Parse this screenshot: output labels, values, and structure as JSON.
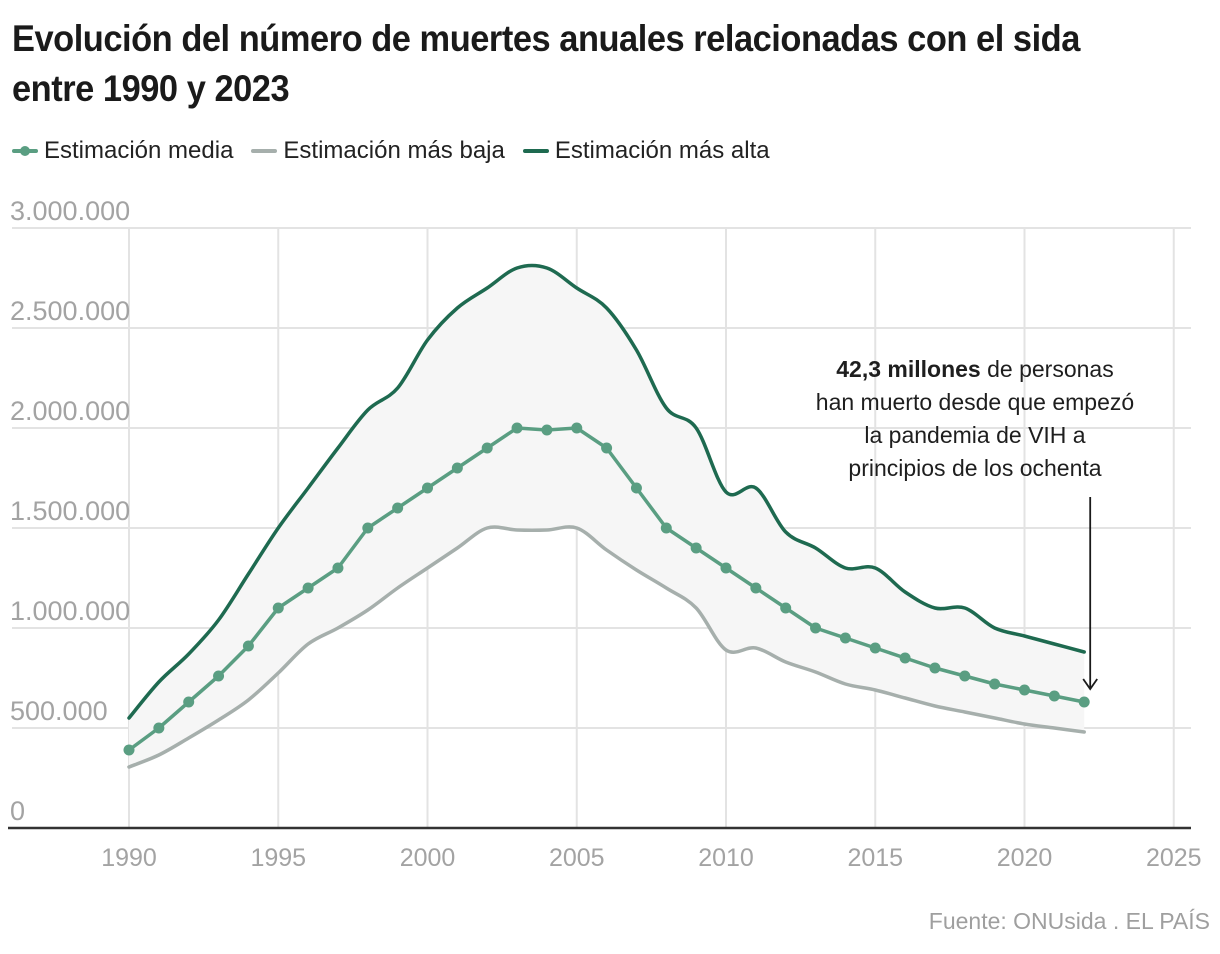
{
  "title": "Evolución del número de muertes anuales relacionadas con el sida entre 1990 y 2023",
  "source": "Fuente: ONUsida . EL PAÍS",
  "colors": {
    "media": "#5a9e82",
    "baja": "#a6afac",
    "alta": "#1e6a50",
    "band": "#f6f6f6",
    "grid": "#e3e3e3",
    "axis": "#333333"
  },
  "chart_data": {
    "type": "line",
    "title": "Evolución del número de muertes anuales relacionadas con el sida entre 1990 y 2023",
    "xlabel": "",
    "ylabel": "",
    "xlim": [
      1986,
      2026
    ],
    "ylim": [
      0,
      3000000
    ],
    "grid": true,
    "legend_position": "top-left",
    "x_ticks": [
      "1990",
      "1995",
      "2000",
      "2005",
      "2010",
      "2015",
      "2020",
      "2025"
    ],
    "x_tick_values": [
      1990,
      1995,
      2000,
      2005,
      2010,
      2015,
      2020,
      2025
    ],
    "y_ticks": [
      "0",
      "500.000",
      "1.000.000",
      "1.500.000",
      "2.000.000",
      "2.500.000",
      "3.000.000"
    ],
    "y_tick_values": [
      0,
      500000,
      1000000,
      1500000,
      2000000,
      2500000,
      3000000
    ],
    "x": [
      1990,
      1991,
      1992,
      1993,
      1994,
      1995,
      1996,
      1997,
      1998,
      1999,
      2000,
      2001,
      2002,
      2003,
      2004,
      2005,
      2006,
      2007,
      2008,
      2009,
      2010,
      2011,
      2012,
      2013,
      2014,
      2015,
      2016,
      2017,
      2018,
      2019,
      2020,
      2021,
      2022
    ],
    "series": [
      {
        "key": "media",
        "name": "Estimación media",
        "markers": true,
        "values": [
          390000,
          500000,
          630000,
          760000,
          910000,
          1100000,
          1200000,
          1300000,
          1500000,
          1600000,
          1700000,
          1800000,
          1900000,
          2000000,
          1990000,
          2000000,
          1900000,
          1700000,
          1500000,
          1400000,
          1300000,
          1200000,
          1100000,
          1000000,
          950000,
          900000,
          850000,
          800000,
          760000,
          720000,
          690000,
          660000,
          630000
        ]
      },
      {
        "key": "baja",
        "name": "Estimación más baja",
        "markers": false,
        "values": [
          305000,
          365000,
          450000,
          540000,
          640000,
          775000,
          920000,
          1000000,
          1090000,
          1200000,
          1300000,
          1400000,
          1500000,
          1490000,
          1490000,
          1500000,
          1390000,
          1290000,
          1200000,
          1100000,
          890000,
          900000,
          830000,
          780000,
          720000,
          690000,
          650000,
          610000,
          580000,
          550000,
          520000,
          500000,
          480000
        ]
      },
      {
        "key": "alta",
        "name": "Estimación más alta",
        "markers": false,
        "values": [
          550000,
          730000,
          870000,
          1040000,
          1270000,
          1500000,
          1700000,
          1900000,
          2090000,
          2200000,
          2440000,
          2600000,
          2700000,
          2800000,
          2800000,
          2700000,
          2600000,
          2390000,
          2100000,
          2000000,
          1680000,
          1700000,
          1480000,
          1400000,
          1300000,
          1300000,
          1180000,
          1100000,
          1100000,
          1000000,
          960000,
          920000,
          880000
        ]
      }
    ],
    "annotation": {
      "bold": "42,3 millones",
      "lines": [
        " de personas",
        "han muerto desde que empezó",
        "la pandemia de VIH a",
        "principios de los ochenta"
      ],
      "points_to_year": 2022
    }
  }
}
